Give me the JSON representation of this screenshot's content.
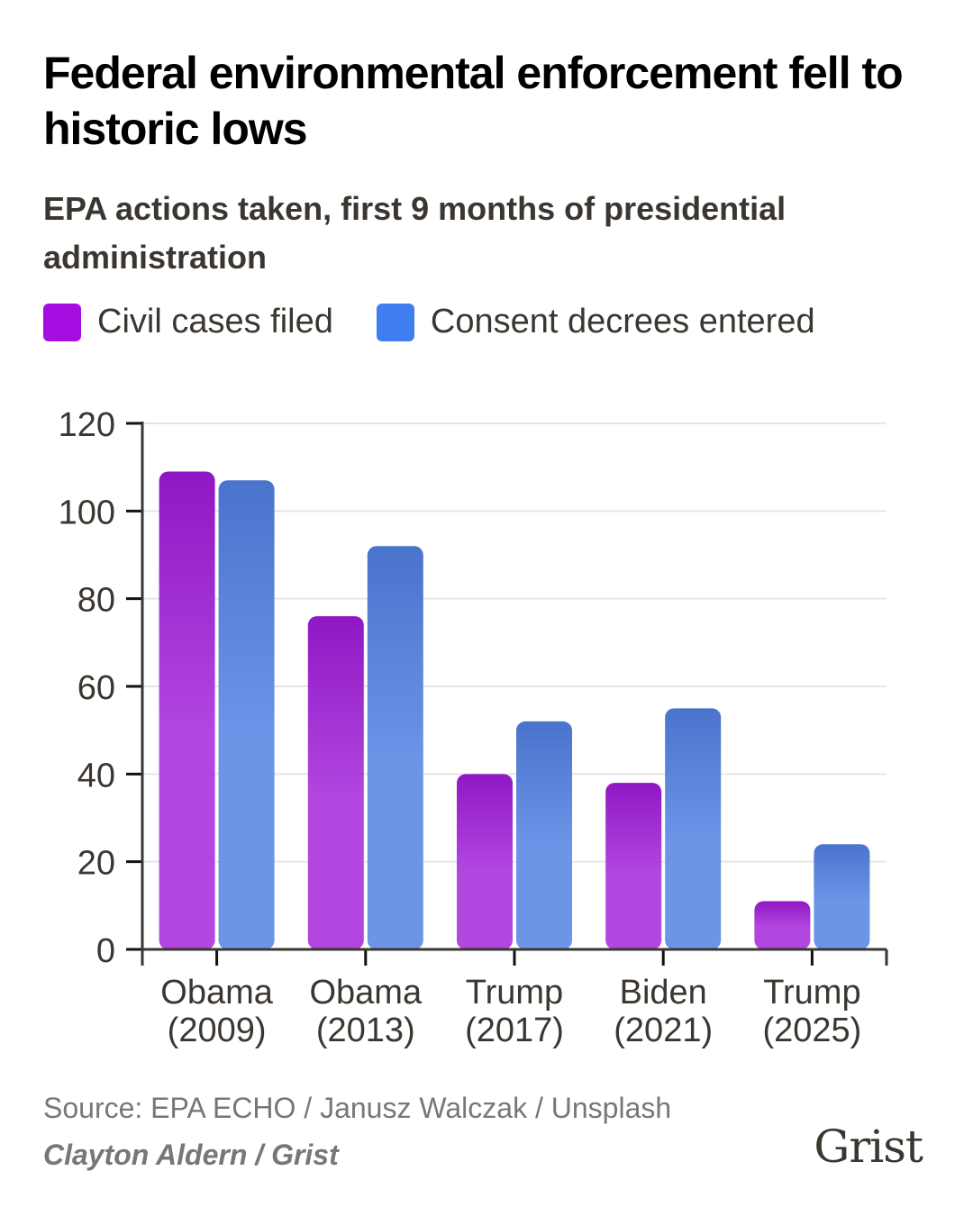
{
  "header": {
    "title": "Federal environmental enforcement fell to historic lows",
    "subtitle": "EPA actions taken, first 9 months of presidential administration"
  },
  "legend": [
    {
      "label": "Civil cases filed",
      "color": "#a60de0"
    },
    {
      "label": "Consent decrees entered",
      "color": "#3e7ef0"
    }
  ],
  "footer": {
    "source": "Source: EPA ECHO / Janusz Walczak / Unsplash",
    "credit": "Clayton Aldern / Grist",
    "logo": "Grist"
  },
  "chart_data": {
    "type": "bar",
    "title": "Federal environmental enforcement fell to historic lows",
    "subtitle": "EPA actions taken, first 9 months of presidential administration",
    "xlabel": "",
    "ylabel": "",
    "categories": [
      "Obama (2009)",
      "Obama (2013)",
      "Trump (2017)",
      "Biden (2021)",
      "Trump (2025)"
    ],
    "category_lines": [
      [
        "Obama",
        "(2009)"
      ],
      [
        "Obama",
        "(2013)"
      ],
      [
        "Trump",
        "(2017)"
      ],
      [
        "Biden",
        "(2021)"
      ],
      [
        "Trump",
        "(2025)"
      ]
    ],
    "series": [
      {
        "name": "Civil cases filed",
        "color": "#ae3fdd",
        "values": [
          109,
          76,
          40,
          38,
          11
        ]
      },
      {
        "name": "Consent decrees entered",
        "color": "#6690e4",
        "values": [
          107,
          92,
          52,
          55,
          24
        ]
      }
    ],
    "ylim": [
      0,
      120
    ],
    "yticks": [
      0,
      20,
      40,
      60,
      80,
      100,
      120
    ],
    "grid": true,
    "legend_position": "top-left"
  }
}
